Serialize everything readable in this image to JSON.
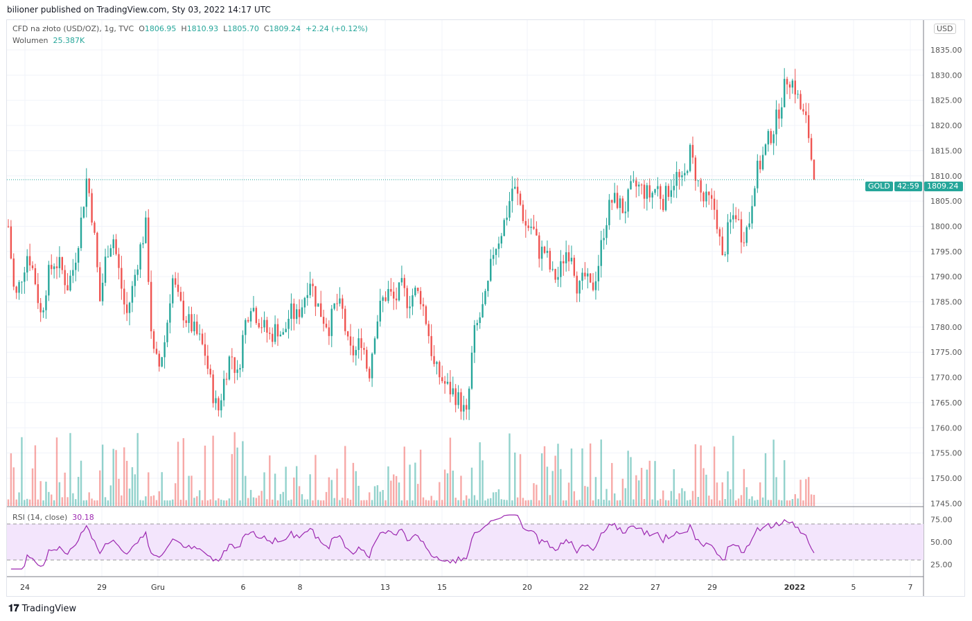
{
  "published": "bilioner published on TradingView.com, Sty 03, 2022 14:17 UTC",
  "legend": {
    "symbol": "CFD na złoto (USD/OZ), 1g, TVC",
    "o_label": "O",
    "o": "1806.95",
    "h_label": "H",
    "h": "1810.93",
    "l_label": "L",
    "l": "1805.70",
    "c_label": "C",
    "c": "1809.24",
    "change": "+2.24 (+0.12%)",
    "vol_label": "Wolumen",
    "vol": "25.387K"
  },
  "rsi": {
    "label": "RSI (14, close)",
    "value": "30.18",
    "ticks": [
      "75.00",
      "50.00",
      "25.00"
    ],
    "upper": 70,
    "lower": 30
  },
  "price_tag": {
    "symbol": "GOLD",
    "price": "1809.24",
    "countdown": "42:59"
  },
  "currency": "USD",
  "brand": "TradingView",
  "colors": {
    "up": "#26a69a",
    "down": "#ef5350",
    "rsi": "#9c27b0",
    "rsi_band": "#f3e5fc"
  },
  "chart_data": {
    "type": "candlestick",
    "ylim": [
      1745,
      1840
    ],
    "yticks": [
      "1835.00",
      "1830.00",
      "1825.00",
      "1820.00",
      "1815.00",
      "1810.00",
      "1805.00",
      "1800.00",
      "1795.00",
      "1790.00",
      "1785.00",
      "1780.00",
      "1775.00",
      "1770.00",
      "1765.00",
      "1760.00",
      "1755.00",
      "1750.00",
      "1745.00"
    ],
    "xticks": [
      "24",
      "29",
      "Gru",
      "6",
      "8",
      "13",
      "15",
      "20",
      "22",
      "27",
      "29",
      "2022",
      "5",
      "7"
    ],
    "closes": [
      1800,
      1785,
      1790,
      1795,
      1790,
      1782,
      1790,
      1793,
      1792,
      1788,
      1792,
      1800,
      1810,
      1800,
      1785,
      1795,
      1798,
      1790,
      1782,
      1788,
      1795,
      1800,
      1775,
      1772,
      1778,
      1790,
      1785,
      1782,
      1780,
      1778,
      1775,
      1768,
      1763,
      1770,
      1775,
      1770,
      1780,
      1785,
      1782,
      1780,
      1778,
      1780,
      1778,
      1783,
      1782,
      1785,
      1790,
      1785,
      1782,
      1780,
      1785,
      1783,
      1775,
      1775,
      1778,
      1770,
      1780,
      1785,
      1787,
      1785,
      1788,
      1785,
      1787,
      1786,
      1780,
      1772,
      1770,
      1768,
      1767,
      1765,
      1762,
      1778,
      1782,
      1786,
      1795,
      1798,
      1802,
      1808,
      1805,
      1800,
      1800,
      1795,
      1795,
      1790,
      1790,
      1795,
      1795,
      1787,
      1790,
      1787,
      1792,
      1800,
      1805,
      1805,
      1803,
      1807,
      1808,
      1807,
      1806,
      1808,
      1805,
      1808,
      1810,
      1808,
      1815,
      1810,
      1805,
      1805,
      1803,
      1793,
      1800,
      1803,
      1798,
      1800,
      1810,
      1813,
      1817,
      1820,
      1825,
      1830,
      1828,
      1823,
      1820,
      1809
    ]
  }
}
